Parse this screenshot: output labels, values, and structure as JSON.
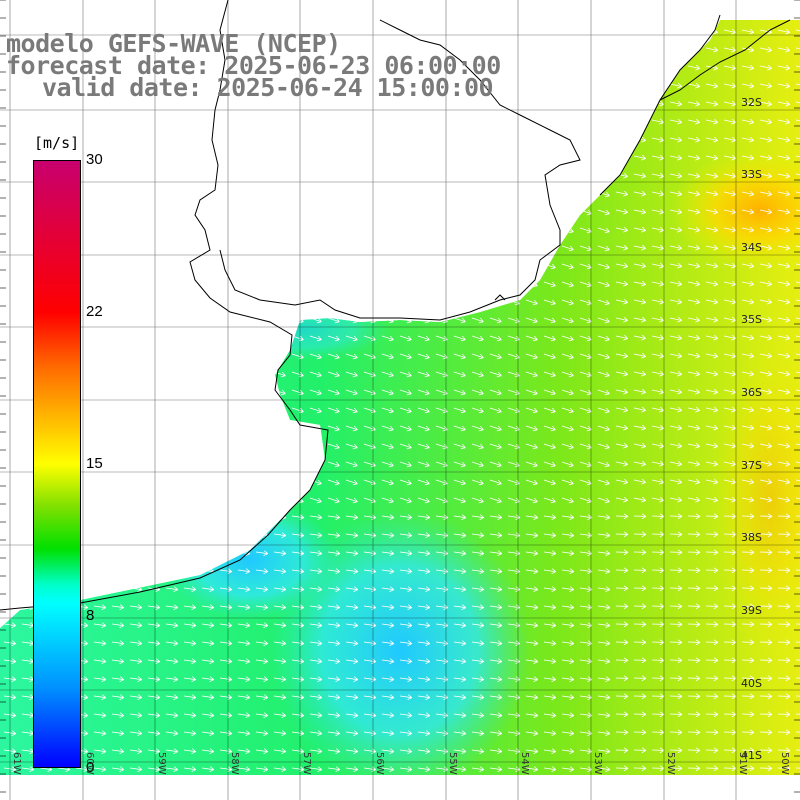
{
  "titles": {
    "line1": "modelo GEFS-WAVE (NCEP)",
    "line2": "forecast date: 2025-06-23 06:00:00",
    "line3": "valid date: 2025-06-24 15:00:00"
  },
  "colorbar": {
    "unit": "[m/s]",
    "ticks": [
      "30",
      "22",
      "15",
      "8",
      "0"
    ]
  },
  "latitude_labels": [
    "32S",
    "33S",
    "34S",
    "35S",
    "36S",
    "37S",
    "38S",
    "39S",
    "40S",
    "41S"
  ],
  "longitude_labels": [
    "61W",
    "60W",
    "59W",
    "58W",
    "57W",
    "56W",
    "55W",
    "54W",
    "53W",
    "52W",
    "51W",
    "50W"
  ],
  "colors": {
    "land": "#ffffff",
    "coast": "#000000",
    "grid": "#000000",
    "arrow": "#ffffff",
    "title": "#7a7a7a"
  }
}
